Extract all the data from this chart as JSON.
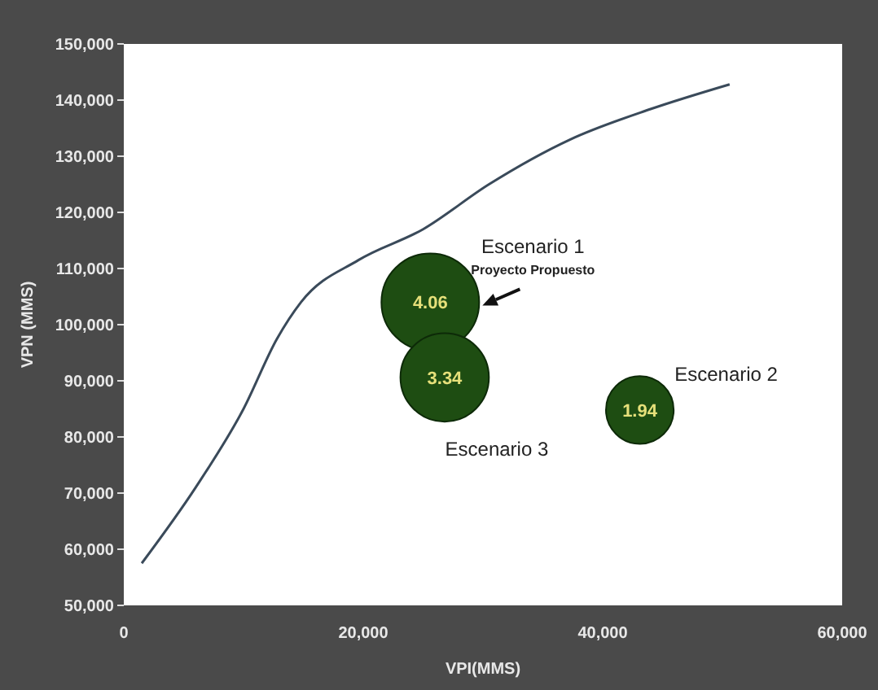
{
  "chart_data": {
    "type": "bubble",
    "xlabel": "VPI(MMS)",
    "ylabel": "VPN (MMS)",
    "xlim": [
      0,
      60000
    ],
    "xticks": [
      {
        "value": 0,
        "label": "0"
      },
      {
        "value": 20000,
        "label": "20,000"
      },
      {
        "value": 40000,
        "label": "40,000"
      },
      {
        "value": 60000,
        "label": "60,000"
      }
    ],
    "ylim": [
      50000,
      150000
    ],
    "yticks": [
      {
        "value": 50000,
        "label": "50,000"
      },
      {
        "value": 60000,
        "label": "60,000"
      },
      {
        "value": 70000,
        "label": "70,000"
      },
      {
        "value": 80000,
        "label": "80,000"
      },
      {
        "value": 90000,
        "label": "90,000"
      },
      {
        "value": 100000,
        "label": "100,000"
      },
      {
        "value": 110000,
        "label": "110,000"
      },
      {
        "value": 120000,
        "label": "120,000"
      },
      {
        "value": 130000,
        "label": "130,000"
      },
      {
        "value": 140000,
        "label": "140,000"
      },
      {
        "value": 150000,
        "label": "150,000"
      }
    ],
    "series": [
      {
        "type": "line",
        "color": "#3a4a5a",
        "x": [
          1500,
          6000,
          10000,
          12800,
          14800,
          19600,
          25000,
          30500,
          37300,
          44000,
          50600
        ],
        "values": [
          57500,
          71000,
          85000,
          97500,
          104000,
          111500,
          117000,
          125000,
          133000,
          138400,
          142800
        ]
      },
      {
        "color": "#1e4d12",
        "x": [
          25600,
          43100,
          26800
        ],
        "values": [
          104000,
          84800,
          90600
        ],
        "sizes": [
          1,
          0.48,
          0.82
        ]
      }
    ],
    "annotations": [
      "Escenario 1",
      "Proyecto Propuesto",
      "Escenario 2",
      "Escenario 3",
      {
        "text": "4.06",
        "x": 25600,
        "y": 104000
      },
      {
        "text": "1.94",
        "x": 43100,
        "y": 84800
      },
      {
        "text": "3.34",
        "x": 26800,
        "y": 90600
      }
    ]
  }
}
